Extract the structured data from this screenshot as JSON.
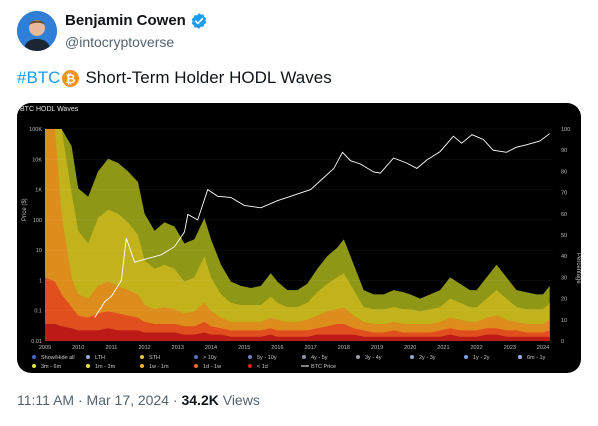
{
  "author": {
    "name": "Benjamin Cowen",
    "handle": "@intocryptoverse",
    "verified": true
  },
  "tweet": {
    "hashtag": "#BTC",
    "emoji": "bitcoin-icon",
    "text": "Short-Term Holder HODL Waves"
  },
  "meta": {
    "time": "11:11 AM",
    "separator1": "·",
    "date": "Mar 17, 2024",
    "separator2": "·",
    "views_count": "34.2K",
    "views_label": "Views"
  },
  "colors": {
    "verified": "#1d9bf0",
    "hashtag": "#1d9bf0",
    "bitcoin": "#f7931a",
    "chart_bg": "#000000"
  },
  "chart_data": {
    "type": "area",
    "title": "BTC HODL Waves",
    "xlabel": "",
    "ylabel_left": "Price ($)",
    "ylabel_right": "Percentage",
    "x_ticks": [
      "2009",
      "2010",
      "2011",
      "2012",
      "2013",
      "2014",
      "2015",
      "2016",
      "2017",
      "2018",
      "2019",
      "2020",
      "2021",
      "2022",
      "2023",
      "2024"
    ],
    "xlim": [
      2009,
      2024.3
    ],
    "y_left_scale": "log",
    "y_left_ticks": [
      "100K",
      "10K",
      "1K",
      "100",
      "10",
      "1",
      "0.1",
      "0.01"
    ],
    "y_right_ticks": [
      "100",
      "90",
      "80",
      "70",
      "60",
      "50",
      "40",
      "30",
      "20",
      "10",
      "0"
    ],
    "y_right_range": [
      0,
      100
    ],
    "legend": [
      {
        "label": "Show/Hide all",
        "color": "#4a66c8"
      },
      {
        "label": "LTH",
        "color": "#9aa9d8"
      },
      {
        "label": "STH",
        "color": "#e6c84a"
      },
      {
        "label": "> 10y",
        "color": "#5570c0"
      },
      {
        "label": "5y - 10y",
        "color": "#6f80b8"
      },
      {
        "label": "4y - 5y",
        "color": "#8890b0"
      },
      {
        "label": "3y - 4y",
        "color": "#9aa0ac"
      },
      {
        "label": "2y - 3y",
        "color": "#8fa8d0"
      },
      {
        "label": "1y - 2y",
        "color": "#7fa0e0"
      },
      {
        "label": "6m - 1y",
        "color": "#9ab0e8"
      },
      {
        "label": "3m - 6m",
        "color": "#d8e04a"
      },
      {
        "label": "1m - 3m",
        "color": "#ece040"
      },
      {
        "label": "1w - 1m",
        "color": "#f0b030"
      },
      {
        "label": "1d - 1w",
        "color": "#ee6a2a"
      },
      {
        "label": "< 1d",
        "color": "#d92020"
      },
      {
        "label": "BTC Price",
        "color": "#ffffff"
      }
    ],
    "legend_placement": "bottom",
    "series": [
      {
        "name": "3m - 6m",
        "color": "#9aa418",
        "x": [
          2009,
          2009.3,
          2009.5,
          2009.8,
          2010,
          2010.3,
          2010.6,
          2010.9,
          2011.2,
          2011.5,
          2011.8,
          2012,
          2012.3,
          2012.6,
          2012.9,
          2013.2,
          2013.5,
          2013.8,
          2014,
          2014.3,
          2014.6,
          2014.9,
          2015.2,
          2015.5,
          2015.8,
          2016,
          2016.3,
          2016.6,
          2016.9,
          2017.2,
          2017.5,
          2017.8,
          2018,
          2018.3,
          2018.6,
          2018.9,
          2019.2,
          2019.5,
          2019.8,
          2020,
          2020.3,
          2020.6,
          2020.9,
          2021.2,
          2021.5,
          2021.8,
          2022,
          2022.3,
          2022.6,
          2022.9,
          2023.2,
          2023.5,
          2023.8,
          2024,
          2024.2
        ],
        "values": [
          100,
          100,
          100,
          92,
          72,
          68,
          80,
          86,
          84,
          80,
          75,
          60,
          52,
          56,
          54,
          46,
          48,
          58,
          48,
          36,
          28,
          26,
          25,
          26,
          32,
          28,
          24,
          24,
          27,
          34,
          40,
          44,
          48,
          36,
          24,
          22,
          22,
          24,
          23,
          22,
          20,
          22,
          24,
          30,
          27,
          24,
          24,
          30,
          36,
          30,
          24,
          23,
          22,
          22,
          26
        ]
      },
      {
        "name": "1m - 3m",
        "color": "#c7b41c",
        "x": [
          2009,
          2009.3,
          2009.5,
          2009.8,
          2010,
          2010.3,
          2010.6,
          2010.9,
          2011.2,
          2011.5,
          2011.8,
          2012,
          2012.3,
          2012.6,
          2012.9,
          2013.2,
          2013.5,
          2013.8,
          2014,
          2014.3,
          2014.6,
          2014.9,
          2015.2,
          2015.5,
          2015.8,
          2016,
          2016.3,
          2016.6,
          2016.9,
          2017.2,
          2017.5,
          2017.8,
          2018,
          2018.3,
          2018.6,
          2018.9,
          2019.2,
          2019.5,
          2019.8,
          2020,
          2020.3,
          2020.6,
          2020.9,
          2021.2,
          2021.5,
          2021.8,
          2022,
          2022.3,
          2022.6,
          2022.9,
          2023.2,
          2023.5,
          2023.8,
          2024,
          2024.2
        ],
        "values": [
          100,
          100,
          100,
          70,
          52,
          46,
          58,
          62,
          60,
          56,
          50,
          38,
          34,
          36,
          34,
          28,
          30,
          40,
          30,
          22,
          18,
          17,
          17,
          17,
          21,
          18,
          16,
          16,
          18,
          23,
          27,
          30,
          32,
          24,
          16,
          15,
          15,
          16,
          15,
          15,
          14,
          15,
          16,
          20,
          18,
          16,
          16,
          20,
          24,
          20,
          16,
          15,
          15,
          15,
          18
        ]
      },
      {
        "name": "1w - 1m",
        "color": "#e08a1c",
        "x": [
          2009,
          2009.3,
          2009.5,
          2009.8,
          2010,
          2010.3,
          2010.6,
          2010.9,
          2011.2,
          2011.5,
          2011.8,
          2012,
          2012.3,
          2012.6,
          2012.9,
          2013.2,
          2013.5,
          2013.8,
          2014,
          2014.3,
          2014.6,
          2014.9,
          2015.2,
          2015.5,
          2015.8,
          2016,
          2016.3,
          2016.6,
          2016.9,
          2017.2,
          2017.5,
          2017.8,
          2018,
          2018.3,
          2018.6,
          2018.9,
          2019.2,
          2019.5,
          2019.8,
          2020,
          2020.3,
          2020.6,
          2020.9,
          2021.2,
          2021.5,
          2021.8,
          2022,
          2022.3,
          2022.6,
          2022.9,
          2023.2,
          2023.5,
          2023.8,
          2024,
          2024.2
        ],
        "values": [
          100,
          100,
          60,
          30,
          22,
          20,
          26,
          28,
          26,
          24,
          22,
          17,
          15,
          16,
          15,
          13,
          14,
          18,
          14,
          11,
          9,
          9,
          9,
          9,
          11,
          10,
          9,
          9,
          10,
          12,
          14,
          15,
          16,
          12,
          9,
          8,
          8,
          9,
          8,
          8,
          8,
          8,
          9,
          11,
          10,
          9,
          9,
          11,
          12,
          10,
          9,
          8,
          8,
          8,
          10
        ]
      },
      {
        "name": "1d - 1w",
        "color": "#e24a1e",
        "x": [
          2009,
          2009.3,
          2009.5,
          2009.8,
          2010,
          2010.3,
          2010.6,
          2010.9,
          2011.2,
          2011.5,
          2011.8,
          2012,
          2012.3,
          2012.6,
          2012.9,
          2013.2,
          2013.5,
          2013.8,
          2014,
          2014.3,
          2014.6,
          2014.9,
          2015.2,
          2015.5,
          2015.8,
          2016,
          2016.3,
          2016.6,
          2016.9,
          2017.2,
          2017.5,
          2017.8,
          2018,
          2018.3,
          2018.6,
          2018.9,
          2019.2,
          2019.5,
          2019.8,
          2020,
          2020.3,
          2020.6,
          2020.9,
          2021.2,
          2021.5,
          2021.8,
          2022,
          2022.3,
          2022.6,
          2022.9,
          2023.2,
          2023.5,
          2023.8,
          2024,
          2024.2
        ],
        "values": [
          30,
          28,
          22,
          16,
          12,
          11,
          13,
          14,
          13,
          12,
          11,
          9,
          8,
          8,
          8,
          7,
          7,
          9,
          7,
          6,
          5,
          5,
          5,
          5,
          6,
          5,
          5,
          5,
          5,
          6,
          7,
          8,
          8,
          6,
          5,
          4,
          4,
          5,
          4,
          4,
          4,
          4,
          5,
          6,
          5,
          5,
          5,
          6,
          6,
          5,
          5,
          4,
          4,
          4,
          5
        ]
      },
      {
        "name": "< 1d",
        "color": "#b81616",
        "x": [
          2009,
          2009.3,
          2009.5,
          2009.8,
          2010,
          2010.3,
          2010.6,
          2010.9,
          2011.2,
          2011.5,
          2011.8,
          2012,
          2012.3,
          2012.6,
          2012.9,
          2013.2,
          2013.5,
          2013.8,
          2014,
          2014.3,
          2014.6,
          2014.9,
          2015.2,
          2015.5,
          2015.8,
          2016,
          2016.3,
          2016.6,
          2016.9,
          2017.2,
          2017.5,
          2017.8,
          2018,
          2018.3,
          2018.6,
          2018.9,
          2019.2,
          2019.5,
          2019.8,
          2020,
          2020.3,
          2020.6,
          2020.9,
          2021.2,
          2021.5,
          2021.8,
          2022,
          2022.3,
          2022.6,
          2022.9,
          2023.2,
          2023.5,
          2023.8,
          2024,
          2024.2
        ],
        "values": [
          8,
          8,
          7,
          6,
          5,
          5,
          5,
          6,
          5,
          5,
          5,
          4,
          4,
          4,
          4,
          3,
          3,
          4,
          3,
          3,
          2,
          2,
          2,
          2,
          3,
          2,
          2,
          2,
          2,
          3,
          3,
          3,
          3,
          3,
          2,
          2,
          2,
          2,
          2,
          2,
          2,
          2,
          2,
          3,
          2,
          2,
          2,
          3,
          3,
          2,
          2,
          2,
          2,
          2,
          2
        ]
      }
    ],
    "price_series": {
      "name": "BTC Price",
      "color": "#ffffff",
      "x": [
        2010.5,
        2010.8,
        2011.0,
        2011.3,
        2011.45,
        2011.7,
        2012.0,
        2012.5,
        2012.9,
        2013.2,
        2013.3,
        2013.6,
        2013.9,
        2014.2,
        2014.6,
        2015.0,
        2015.5,
        2016.0,
        2016.5,
        2017.0,
        2017.4,
        2017.7,
        2017.96,
        2018.2,
        2018.5,
        2018.9,
        2019.1,
        2019.5,
        2019.9,
        2020.2,
        2020.5,
        2020.9,
        2021.3,
        2021.55,
        2021.86,
        2022.2,
        2022.5,
        2022.9,
        2023.2,
        2023.5,
        2023.9,
        2024.2
      ],
      "values": [
        0.06,
        0.2,
        0.3,
        1,
        25,
        4,
        5,
        7,
        13,
        40,
        150,
        100,
        1000,
        600,
        550,
        300,
        250,
        430,
        650,
        1000,
        2500,
        5000,
        17000,
        9000,
        7000,
        3800,
        3500,
        11000,
        7500,
        5000,
        9500,
        18000,
        58000,
        34000,
        65000,
        45000,
        20000,
        17000,
        25000,
        30000,
        40000,
        70000
      ]
    }
  }
}
